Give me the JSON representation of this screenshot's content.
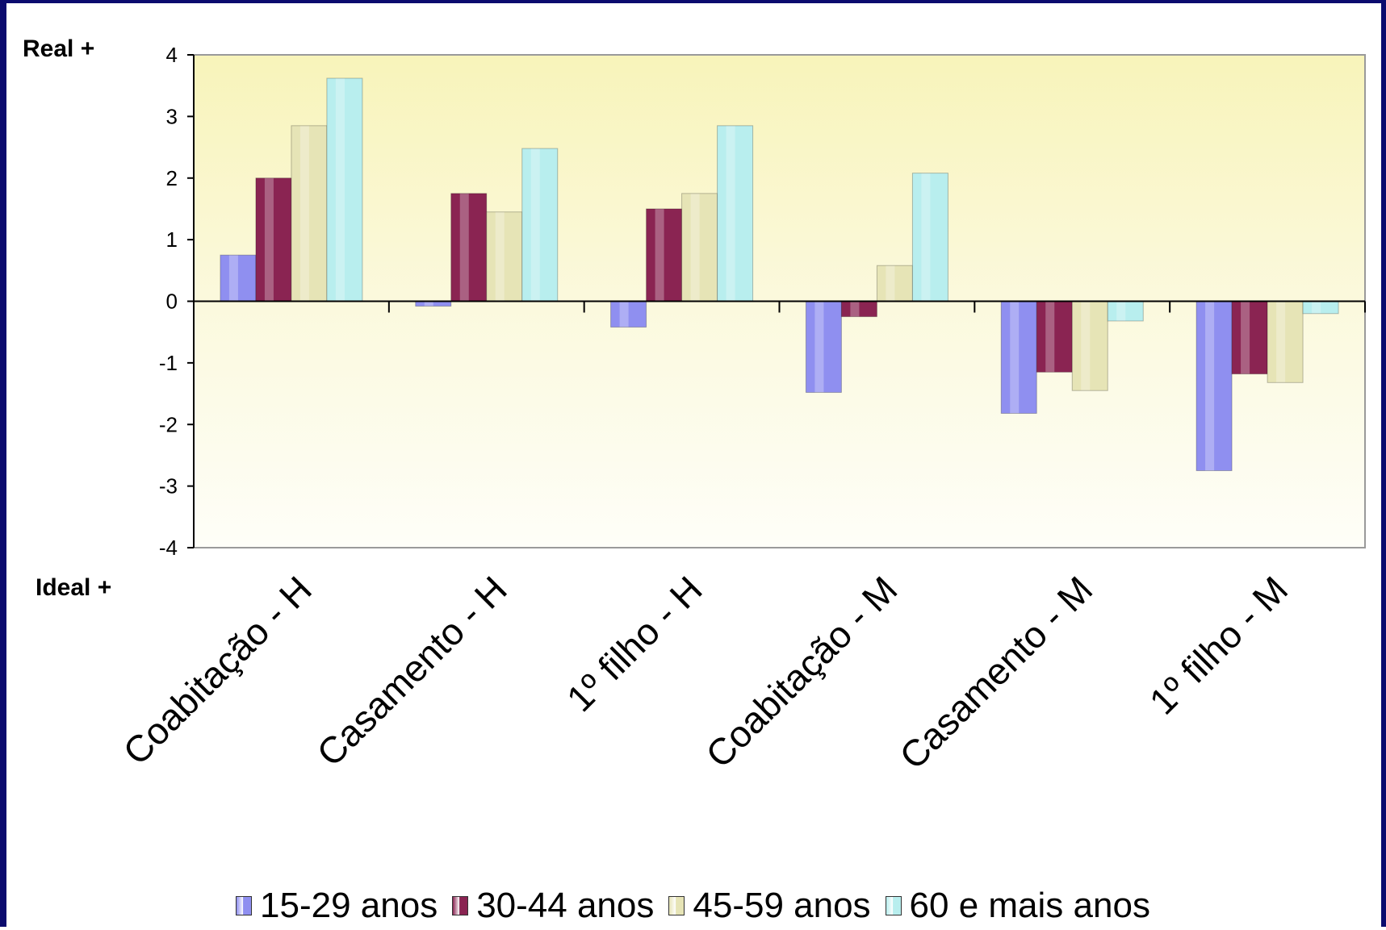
{
  "labels": {
    "top": "Real +",
    "bottom": "Ideal +"
  },
  "chart_data": {
    "type": "bar",
    "categories": [
      "Coabitação - H",
      "Casamento - H",
      "1º filho - H",
      "Coabitação - M",
      "Casamento - M",
      "1º filho - M"
    ],
    "series": [
      {
        "name": "15-29 anos",
        "color": "#8f8ff0",
        "values": [
          0.75,
          -0.08,
          -0.42,
          -1.48,
          -1.82,
          -2.75
        ]
      },
      {
        "name": "30-44 anos",
        "color": "#8a2452",
        "values": [
          2.0,
          1.75,
          1.5,
          -0.25,
          -1.15,
          -1.18
        ]
      },
      {
        "name": "45-59 anos",
        "color": "#e6e4b6",
        "values": [
          2.85,
          1.45,
          1.75,
          0.58,
          -1.45,
          -1.32
        ]
      },
      {
        "name": "60 e mais anos",
        "color": "#b8eeee",
        "values": [
          3.62,
          2.48,
          2.85,
          2.08,
          -0.32,
          -0.2
        ]
      }
    ],
    "ylim": [
      -4,
      4
    ],
    "yticks": [
      -4,
      -3,
      -2,
      -1,
      0,
      1,
      2,
      3,
      4
    ],
    "legend_position": "bottom",
    "grid": false
  }
}
